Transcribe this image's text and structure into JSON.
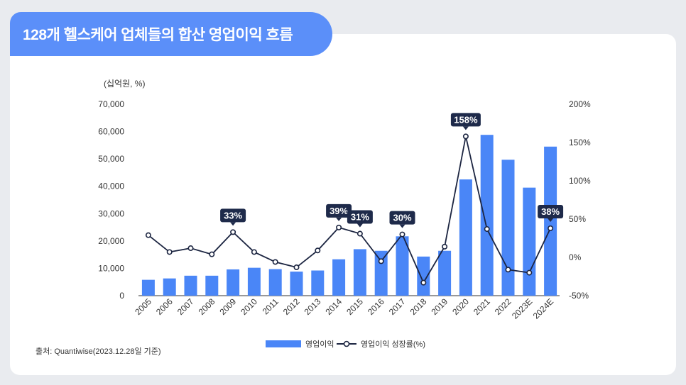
{
  "title": "128개 헬스케어 업체들의 합산 영업이익 흐름",
  "source": "출처: Quantiwise(2023.12.28일 기준)",
  "colors": {
    "bar": "#4a86f7",
    "line": "#1c2541",
    "badge": "#1e2a4a",
    "title_bg": "#5b8ff9"
  },
  "chart_data": {
    "type": "bar",
    "unit_label": "(십억원, %)",
    "categories": [
      "2005",
      "2006",
      "2007",
      "2008",
      "2009",
      "2010",
      "2011",
      "2012",
      "2013",
      "2014",
      "2015",
      "2016",
      "2017",
      "2018",
      "2019",
      "2020",
      "2021",
      "2022",
      "2023E",
      "2024E"
    ],
    "left_axis": {
      "ylim": [
        0,
        70000
      ],
      "ticks": [
        "70,000",
        "60,000",
        "50,000",
        "40,000",
        "30,000",
        "20,000",
        "10,000",
        "0"
      ]
    },
    "right_axis": {
      "ylim": [
        -50,
        200
      ],
      "ticks": [
        "200%",
        "150%",
        "100%",
        "50%",
        "0%",
        "-50%"
      ]
    },
    "series": [
      {
        "name": "영업이익",
        "type": "bar",
        "values": [
          5800,
          6300,
          7300,
          7300,
          9600,
          10200,
          9700,
          8800,
          9200,
          13300,
          17000,
          16400,
          21700,
          14300,
          16400,
          42500,
          58800,
          49700,
          39500,
          54500
        ]
      },
      {
        "name": "영업이익 성장률(%)",
        "type": "line",
        "values": [
          29,
          7,
          12,
          4,
          33,
          7,
          -6,
          -13,
          9,
          39,
          31,
          -5,
          30,
          -33,
          14,
          158,
          37,
          -16,
          -20,
          38
        ]
      }
    ],
    "labels": [
      {
        "category": "2009",
        "text": "33%"
      },
      {
        "category": "2014",
        "text": "39%"
      },
      {
        "category": "2015",
        "text": "31%"
      },
      {
        "category": "2017",
        "text": "30%"
      },
      {
        "category": "2020",
        "text": "158%"
      },
      {
        "category": "2024E",
        "text": "38%"
      }
    ]
  }
}
